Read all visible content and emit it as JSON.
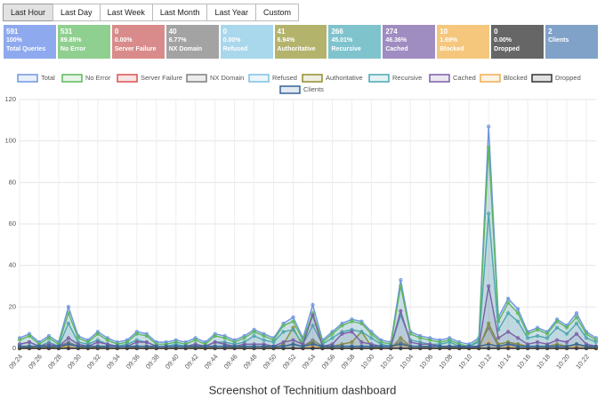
{
  "buttons": [
    "Last Hour",
    "Last Day",
    "Last Week",
    "Last Month",
    "Last Year",
    "Custom"
  ],
  "stats": [
    {
      "count": 591,
      "percent": "100%",
      "label": "Total Queries",
      "color": "#8fa9ee"
    },
    {
      "count": 531,
      "percent": "89.85%",
      "label": "No Error",
      "color": "#8fcf8f"
    },
    {
      "count": 0,
      "percent": "0.00%",
      "label": "Server Failure",
      "color": "#d98b8b"
    },
    {
      "count": 40,
      "percent": "6.77%",
      "label": "NX Domain",
      "color": "#a3a3a3"
    },
    {
      "count": 0,
      "percent": "0.00%",
      "label": "Refused",
      "color": "#a9d7ec"
    },
    {
      "count": 41,
      "percent": "6.94%",
      "label": "Authoritative",
      "color": "#b3b36c"
    },
    {
      "count": 266,
      "percent": "45.01%",
      "label": "Recursive",
      "color": "#7fc3cd"
    },
    {
      "count": 274,
      "percent": "46.36%",
      "label": "Cached",
      "color": "#9f8cc0"
    },
    {
      "count": 10,
      "percent": "1.69%",
      "label": "Blocked",
      "color": "#f4c77d"
    },
    {
      "count": 0,
      "percent": "0.00%",
      "label": "Dropped",
      "color": "#666666"
    },
    {
      "count": 2,
      "label": "Clients",
      "color": "#80a2c9"
    }
  ],
  "chart_data": {
    "type": "line",
    "categories": [
      "09:24",
      null,
      "09:26",
      null,
      "09:28",
      null,
      "09:30",
      null,
      "09:32",
      null,
      "09:34",
      null,
      "09:36",
      null,
      "09:38",
      null,
      "09:40",
      null,
      "09:42",
      null,
      "09:44",
      null,
      "09:46",
      null,
      "09:48",
      null,
      "09:50",
      null,
      "09:52",
      null,
      "09:54",
      null,
      "09:56",
      null,
      "09:58",
      null,
      "10:00",
      null,
      "10:02",
      null,
      "10:04",
      null,
      "10:06",
      null,
      "10:08",
      null,
      "10:10",
      null,
      "10:12",
      null,
      "10:14",
      null,
      "10:16",
      null,
      "10:18",
      null,
      "10:20",
      null,
      "10:22",
      null
    ],
    "ylim": [
      0,
      120
    ],
    "yticks": [
      0,
      20,
      40,
      60,
      80,
      100,
      120
    ],
    "grid": true,
    "series": [
      {
        "name": "Total",
        "color": "#6e95e0",
        "values": [
          5,
          7,
          3,
          6,
          3,
          20,
          6,
          4,
          8,
          5,
          3,
          4,
          8,
          7,
          3,
          3,
          4,
          3,
          5,
          3,
          7,
          6,
          4,
          6,
          9,
          7,
          5,
          12,
          15,
          5,
          21,
          4,
          8,
          12,
          14,
          13,
          8,
          4,
          3,
          33,
          8,
          6,
          5,
          4,
          5,
          3,
          2,
          5,
          107,
          15,
          24,
          19,
          8,
          10,
          8,
          14,
          11,
          17,
          8,
          5
        ]
      },
      {
        "name": "No Error",
        "color": "#5cb85c",
        "values": [
          4,
          6,
          2,
          5,
          2,
          17,
          5,
          3,
          7,
          4,
          2,
          3,
          7,
          6,
          2,
          2,
          3,
          2,
          4,
          2,
          6,
          5,
          3,
          5,
          8,
          6,
          4,
          11,
          13,
          4,
          17,
          3,
          7,
          11,
          13,
          12,
          7,
          3,
          2,
          30,
          7,
          5,
          4,
          3,
          4,
          2,
          1,
          4,
          97,
          13,
          22,
          17,
          7,
          9,
          7,
          13,
          10,
          15,
          7,
          4
        ]
      },
      {
        "name": "Server Failure",
        "color": "#d9534f",
        "values": [
          0,
          0,
          0,
          0,
          0,
          0,
          0,
          0,
          0,
          0,
          0,
          0,
          0,
          0,
          0,
          0,
          0,
          0,
          0,
          0,
          0,
          0,
          0,
          0,
          0,
          0,
          0,
          0,
          0,
          0,
          0,
          0,
          0,
          0,
          0,
          0,
          0,
          0,
          0,
          0,
          0,
          0,
          0,
          0,
          0,
          0,
          0,
          0,
          0,
          0,
          0,
          0,
          0,
          0,
          0,
          0,
          0,
          0,
          0,
          0
        ]
      },
      {
        "name": "NX Domain",
        "color": "#7f7f7f",
        "values": [
          1,
          1,
          1,
          1,
          1,
          3,
          1,
          1,
          1,
          1,
          1,
          1,
          1,
          1,
          1,
          1,
          1,
          1,
          1,
          1,
          1,
          1,
          1,
          1,
          1,
          1,
          1,
          1,
          2,
          1,
          4,
          1,
          1,
          1,
          1,
          1,
          1,
          1,
          1,
          3,
          1,
          1,
          1,
          1,
          1,
          1,
          1,
          1,
          10,
          1,
          2,
          2,
          1,
          1,
          1,
          1,
          1,
          2,
          1,
          1
        ]
      },
      {
        "name": "Refused",
        "color": "#7fc0e5",
        "values": [
          0,
          0,
          0,
          0,
          0,
          0,
          0,
          0,
          0,
          0,
          0,
          0,
          0,
          0,
          0,
          0,
          0,
          0,
          0,
          0,
          0,
          0,
          0,
          0,
          0,
          0,
          0,
          0,
          0,
          0,
          0,
          0,
          0,
          0,
          0,
          0,
          0,
          0,
          0,
          0,
          0,
          0,
          0,
          0,
          0,
          0,
          0,
          0,
          0,
          0,
          0,
          0,
          0,
          0,
          0,
          0,
          0,
          0,
          0,
          0
        ]
      },
      {
        "name": "Authoritative",
        "color": "#8d8d2d",
        "values": [
          0,
          1,
          0,
          1,
          0,
          2,
          1,
          0,
          1,
          0,
          0,
          0,
          1,
          1,
          0,
          0,
          0,
          0,
          1,
          0,
          1,
          1,
          0,
          1,
          1,
          1,
          0,
          2,
          10,
          1,
          3,
          0,
          1,
          2,
          3,
          8,
          1,
          0,
          0,
          5,
          1,
          1,
          0,
          0,
          1,
          0,
          0,
          0,
          12,
          2,
          3,
          2,
          1,
          1,
          1,
          2,
          1,
          2,
          1,
          0
        ]
      },
      {
        "name": "Recursive",
        "color": "#4da6b0",
        "values": [
          2,
          3,
          1,
          3,
          1,
          12,
          3,
          2,
          4,
          2,
          1,
          2,
          4,
          3,
          1,
          1,
          2,
          1,
          2,
          1,
          3,
          3,
          2,
          3,
          6,
          4,
          3,
          8,
          9,
          2,
          11,
          2,
          5,
          8,
          9,
          8,
          5,
          2,
          1,
          16,
          4,
          3,
          2,
          2,
          3,
          1,
          1,
          3,
          65,
          9,
          17,
          13,
          5,
          6,
          5,
          10,
          7,
          12,
          5,
          3
        ]
      },
      {
        "name": "Cached",
        "color": "#7b5ea7",
        "values": [
          2,
          3,
          1,
          2,
          1,
          5,
          2,
          1,
          3,
          2,
          1,
          1,
          3,
          3,
          1,
          1,
          1,
          1,
          2,
          1,
          3,
          2,
          1,
          2,
          2,
          2,
          1,
          3,
          4,
          2,
          16,
          1,
          2,
          7,
          8,
          3,
          2,
          1,
          1,
          18,
          3,
          2,
          2,
          1,
          1,
          1,
          0,
          1,
          30,
          5,
          8,
          5,
          2,
          3,
          2,
          4,
          3,
          7,
          2,
          1
        ]
      },
      {
        "name": "Blocked",
        "color": "#f0ad4e",
        "values": [
          0,
          0,
          0,
          0,
          0,
          1,
          0,
          0,
          0,
          0,
          0,
          0,
          0,
          0,
          0,
          0,
          0,
          0,
          0,
          0,
          0,
          0,
          0,
          0,
          0,
          0,
          0,
          0,
          0,
          0,
          1,
          0,
          0,
          0,
          0,
          0,
          0,
          0,
          0,
          2,
          0,
          0,
          0,
          0,
          0,
          0,
          0,
          0,
          3,
          0,
          1,
          0,
          0,
          0,
          0,
          0,
          0,
          1,
          0,
          0
        ]
      },
      {
        "name": "Dropped",
        "color": "#333333",
        "values": [
          0,
          0,
          0,
          0,
          0,
          0,
          0,
          0,
          0,
          0,
          0,
          0,
          0,
          0,
          0,
          0,
          0,
          0,
          0,
          0,
          0,
          0,
          0,
          0,
          0,
          0,
          0,
          0,
          0,
          0,
          0,
          0,
          0,
          0,
          0,
          0,
          0,
          0,
          0,
          0,
          0,
          0,
          0,
          0,
          0,
          0,
          0,
          0,
          0,
          0,
          0,
          0,
          0,
          0,
          0,
          0,
          0,
          0,
          0,
          0
        ]
      },
      {
        "name": "Clients",
        "color": "#336699",
        "values": [
          1,
          1,
          1,
          1,
          1,
          2,
          1,
          1,
          1,
          1,
          1,
          1,
          1,
          1,
          1,
          1,
          1,
          1,
          1,
          1,
          1,
          1,
          1,
          1,
          1,
          1,
          1,
          1,
          2,
          1,
          2,
          1,
          1,
          1,
          1,
          1,
          1,
          1,
          1,
          2,
          1,
          1,
          1,
          1,
          1,
          1,
          1,
          1,
          2,
          1,
          2,
          1,
          1,
          1,
          1,
          1,
          1,
          2,
          1,
          1
        ]
      }
    ]
  },
  "caption": "Screenshot of Technitium dashboard"
}
